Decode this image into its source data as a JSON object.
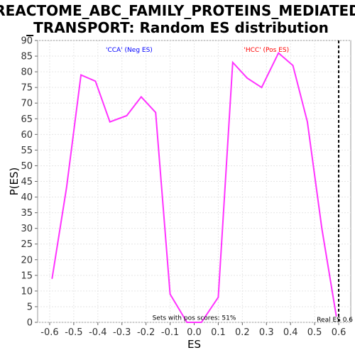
{
  "chart_data": {
    "type": "line",
    "title_line1": "REACTOME_ABC_FAMILY_PROTEINS_MEDIATED",
    "title_line2": "_TRANSPORT: Random ES distribution",
    "xlabel": "ES",
    "ylabel": "P(ES)",
    "xlim": [
      -0.65,
      0.65
    ],
    "ylim": [
      0,
      90
    ],
    "xticks": [
      -0.6,
      -0.5,
      -0.4,
      -0.3,
      -0.2,
      -0.1,
      0.0,
      0.1,
      0.2,
      0.3,
      0.4,
      0.5,
      0.6
    ],
    "xtick_labels": [
      "-0.6",
      "-0.5",
      "-0.4",
      "-0.3",
      "-0.2",
      "-0.1",
      "0.0",
      "0.1",
      "0.2",
      "0.3",
      "0.4",
      "0.5",
      "0.6"
    ],
    "yticks": [
      0,
      5,
      10,
      15,
      20,
      25,
      30,
      35,
      40,
      45,
      50,
      55,
      60,
      65,
      70,
      75,
      80,
      85,
      90
    ],
    "grid": true,
    "series": [
      {
        "color": "#ff33ff",
        "x": [
          -0.59,
          -0.53,
          -0.47,
          -0.41,
          -0.35,
          -0.28,
          -0.22,
          -0.16,
          -0.1,
          -0.03,
          0.03,
          0.1,
          0.16,
          0.22,
          0.28,
          0.35,
          0.41,
          0.47,
          0.53,
          0.59
        ],
        "y": [
          14,
          43,
          79,
          77,
          64,
          66,
          72,
          67,
          9,
          0,
          0,
          8,
          83,
          78,
          75,
          86,
          82,
          64,
          30,
          2
        ]
      }
    ],
    "real_es": {
      "x": 0.6,
      "label": "Real ES 0.6"
    },
    "annotations": [
      {
        "text": "'CCA' (Neg ES)",
        "color": "#0000ff",
        "x": -0.27,
        "y": 87
      },
      {
        "text": "'HCC' (Pos ES)",
        "color": "#ff0000",
        "x": 0.3,
        "y": 87
      },
      {
        "text": "Sets with pos scores: 51%",
        "color": "#000000",
        "x": 0.0,
        "y": 1.5
      }
    ]
  }
}
